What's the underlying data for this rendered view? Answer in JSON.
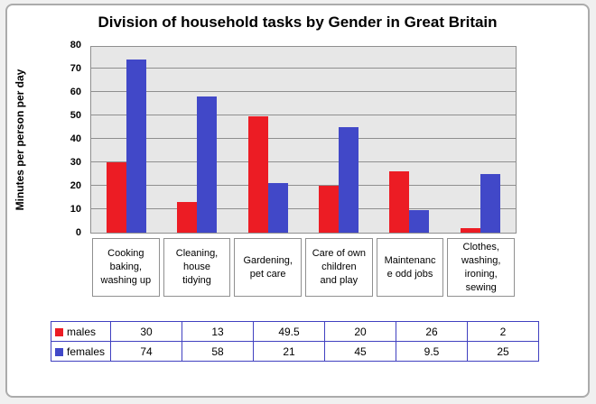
{
  "page": {
    "background": "#F0F0F0",
    "panel_border": "#ABABAB"
  },
  "chart_data": {
    "type": "bar",
    "title": "Division of household tasks by Gender in Great Britain",
    "ylabel": "Minutes per person per day",
    "xlabel": "",
    "ylim": [
      0,
      80
    ],
    "yticks": [
      0,
      10,
      20,
      30,
      40,
      50,
      60,
      70,
      80
    ],
    "grid": true,
    "plot_background": "#E7E7E7",
    "gridline_color": "#8F8F8F",
    "legend_position": "bottom-table",
    "categories": [
      "Cooking baking, washing up",
      "Cleaning, house tidying",
      "Gardening, pet care",
      "Care of own children and play",
      "Maintenanc e odd jobs",
      "Clothes, washing, ironing, sewing"
    ],
    "category_label_lines": [
      [
        "Cooking",
        "baking,",
        "washing up"
      ],
      [
        "Cleaning,",
        "house",
        "tidying"
      ],
      [
        "Gardening,",
        "pet care"
      ],
      [
        "Care of own",
        "children",
        "and play"
      ],
      [
        "Maintenanc",
        "e odd jobs"
      ],
      [
        "Clothes,",
        "washing,",
        "ironing,",
        "sewing"
      ]
    ],
    "series": [
      {
        "name": "males",
        "color": "#EC1C24",
        "values": [
          30,
          13,
          49.5,
          20,
          26,
          2
        ]
      },
      {
        "name": "females",
        "color": "#4148C8",
        "values": [
          74,
          58,
          21,
          45,
          9.5,
          25
        ]
      }
    ]
  },
  "legend_table": {
    "border_color": "#4040C0",
    "rows": [
      {
        "label": "males",
        "swatch": "#EC1C24",
        "values": [
          "30",
          "13",
          "49.5",
          "20",
          "26",
          "2"
        ]
      },
      {
        "label": "females",
        "swatch": "#4148C8",
        "values": [
          "74",
          "58",
          "21",
          "45",
          "9.5",
          "25"
        ]
      }
    ]
  }
}
